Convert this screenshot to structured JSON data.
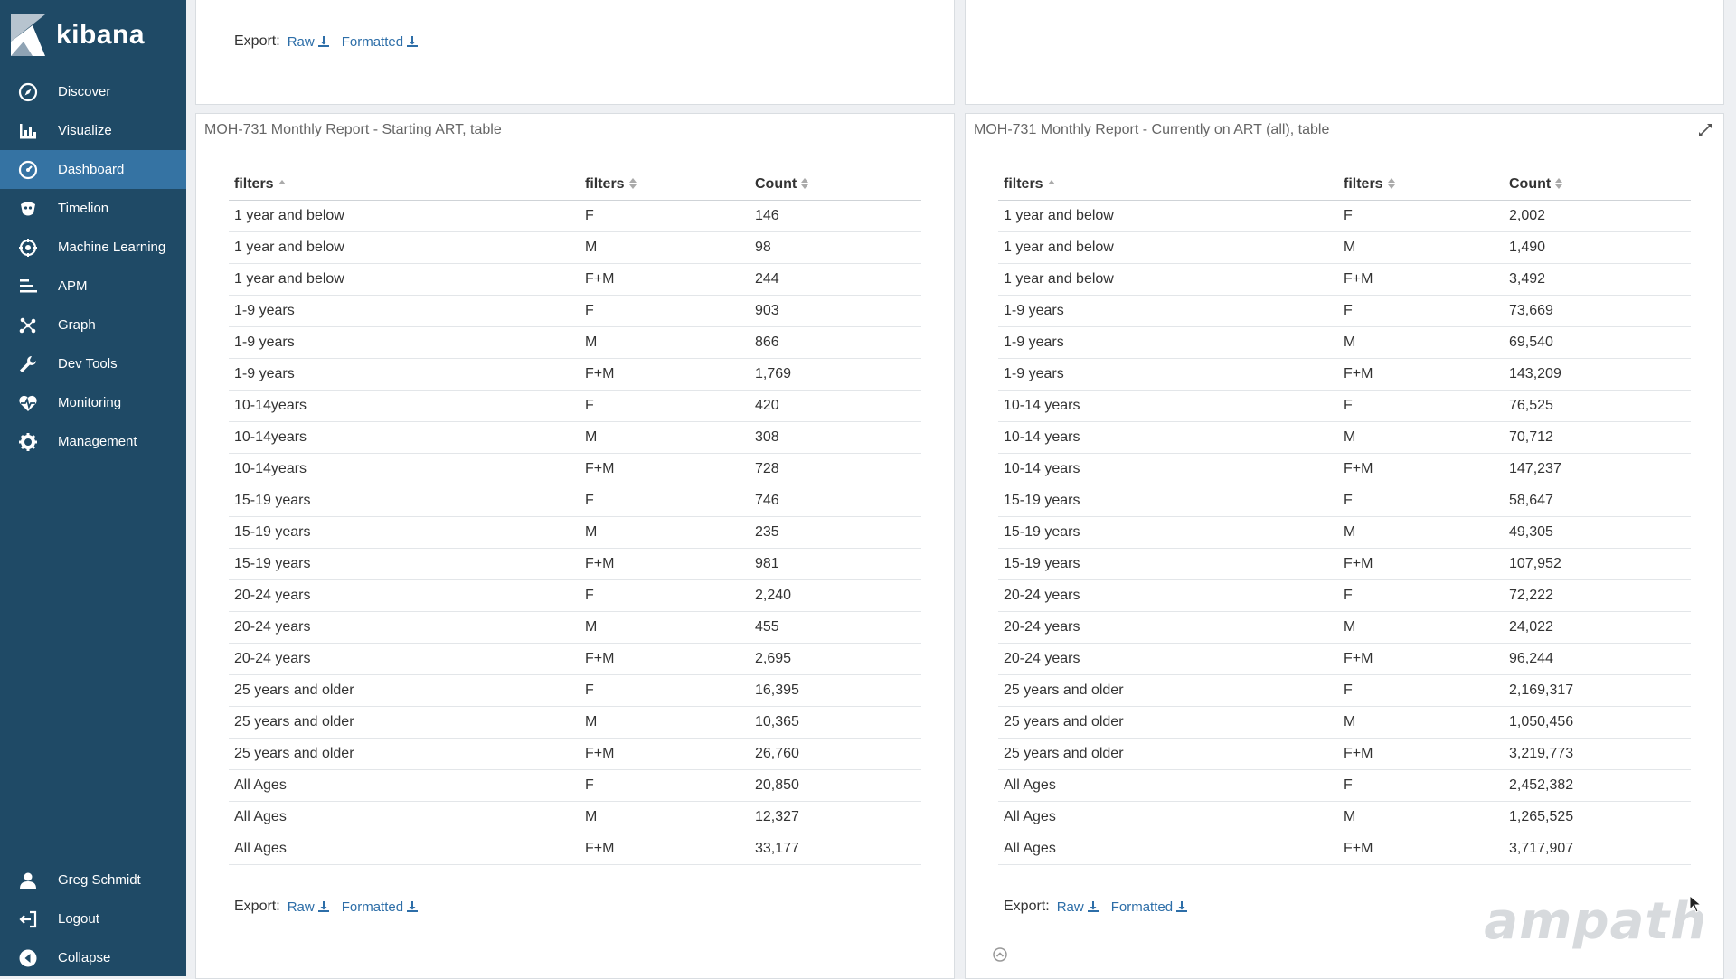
{
  "app": {
    "name": "kibana"
  },
  "nav": {
    "items": [
      {
        "label": "Discover",
        "icon": "compass-icon"
      },
      {
        "label": "Visualize",
        "icon": "bar-chart-icon"
      },
      {
        "label": "Dashboard",
        "icon": "dashboard-icon",
        "active": true
      },
      {
        "label": "Timelion",
        "icon": "timelion-icon"
      },
      {
        "label": "Machine Learning",
        "icon": "machine-learning-icon"
      },
      {
        "label": "APM",
        "icon": "apm-icon"
      },
      {
        "label": "Graph",
        "icon": "graph-icon"
      },
      {
        "label": "Dev Tools",
        "icon": "wrench-icon"
      },
      {
        "label": "Monitoring",
        "icon": "heartbeat-icon"
      },
      {
        "label": "Management",
        "icon": "gear-icon"
      }
    ],
    "bottom": [
      {
        "label": "Greg Schmidt",
        "icon": "user-icon"
      },
      {
        "label": "Logout",
        "icon": "logout-icon"
      },
      {
        "label": "Collapse",
        "icon": "collapse-icon"
      }
    ]
  },
  "export": {
    "label": "Export:",
    "raw": "Raw",
    "formatted": "Formatted"
  },
  "panels": {
    "left": {
      "title": "MOH-731 Monthly Report - Starting ART, table",
      "headers": [
        "filters",
        "filters",
        "Count"
      ],
      "rows": [
        [
          "1 year and below",
          "F",
          "146"
        ],
        [
          "1 year and below",
          "M",
          "98"
        ],
        [
          "1 year and below",
          "F+M",
          "244"
        ],
        [
          "1-9 years",
          "F",
          "903"
        ],
        [
          "1-9 years",
          "M",
          "866"
        ],
        [
          "1-9 years",
          "F+M",
          "1,769"
        ],
        [
          "10-14years",
          "F",
          "420"
        ],
        [
          "10-14years",
          "M",
          "308"
        ],
        [
          "10-14years",
          "F+M",
          "728"
        ],
        [
          "15-19 years",
          "F",
          "746"
        ],
        [
          "15-19 years",
          "M",
          "235"
        ],
        [
          "15-19 years",
          "F+M",
          "981"
        ],
        [
          "20-24 years",
          "F",
          "2,240"
        ],
        [
          "20-24 years",
          "M",
          "455"
        ],
        [
          "20-24 years",
          "F+M",
          "2,695"
        ],
        [
          "25 years and older",
          "F",
          "16,395"
        ],
        [
          "25 years and older",
          "M",
          "10,365"
        ],
        [
          "25 years and older",
          "F+M",
          "26,760"
        ],
        [
          "All Ages",
          "F",
          "20,850"
        ],
        [
          "All Ages",
          "M",
          "12,327"
        ],
        [
          "All Ages",
          "F+M",
          "33,177"
        ]
      ]
    },
    "right": {
      "title": "MOH-731 Monthly Report - Currently on ART (all), table",
      "headers": [
        "filters",
        "filters",
        "Count"
      ],
      "rows": [
        [
          "1 year and below",
          "F",
          "2,002"
        ],
        [
          "1 year and below",
          "M",
          "1,490"
        ],
        [
          "1 year and below",
          "F+M",
          "3,492"
        ],
        [
          "1-9 years",
          "F",
          "73,669"
        ],
        [
          "1-9 years",
          "M",
          "69,540"
        ],
        [
          "1-9 years",
          "F+M",
          "143,209"
        ],
        [
          "10-14 years",
          "F",
          "76,525"
        ],
        [
          "10-14 years",
          "M",
          "70,712"
        ],
        [
          "10-14 years",
          "F+M",
          "147,237"
        ],
        [
          "15-19 years",
          "F",
          "58,647"
        ],
        [
          "15-19 years",
          "M",
          "49,305"
        ],
        [
          "15-19 years",
          "F+M",
          "107,952"
        ],
        [
          "20-24 years",
          "F",
          "72,222"
        ],
        [
          "20-24 years",
          "M",
          "24,022"
        ],
        [
          "20-24 years",
          "F+M",
          "96,244"
        ],
        [
          "25 years and older",
          "F",
          "2,169,317"
        ],
        [
          "25 years and older",
          "M",
          "1,050,456"
        ],
        [
          "25 years and older",
          "F+M",
          "3,219,773"
        ],
        [
          "All Ages",
          "F",
          "2,452,382"
        ],
        [
          "All Ages",
          "M",
          "1,265,525"
        ],
        [
          "All Ages",
          "F+M",
          "3,717,907"
        ]
      ]
    }
  },
  "watermark": {
    "text": "ampath"
  },
  "colors": {
    "sidebar": "#1f4a66",
    "active": "#3573a3",
    "link": "#2d6ea8"
  }
}
